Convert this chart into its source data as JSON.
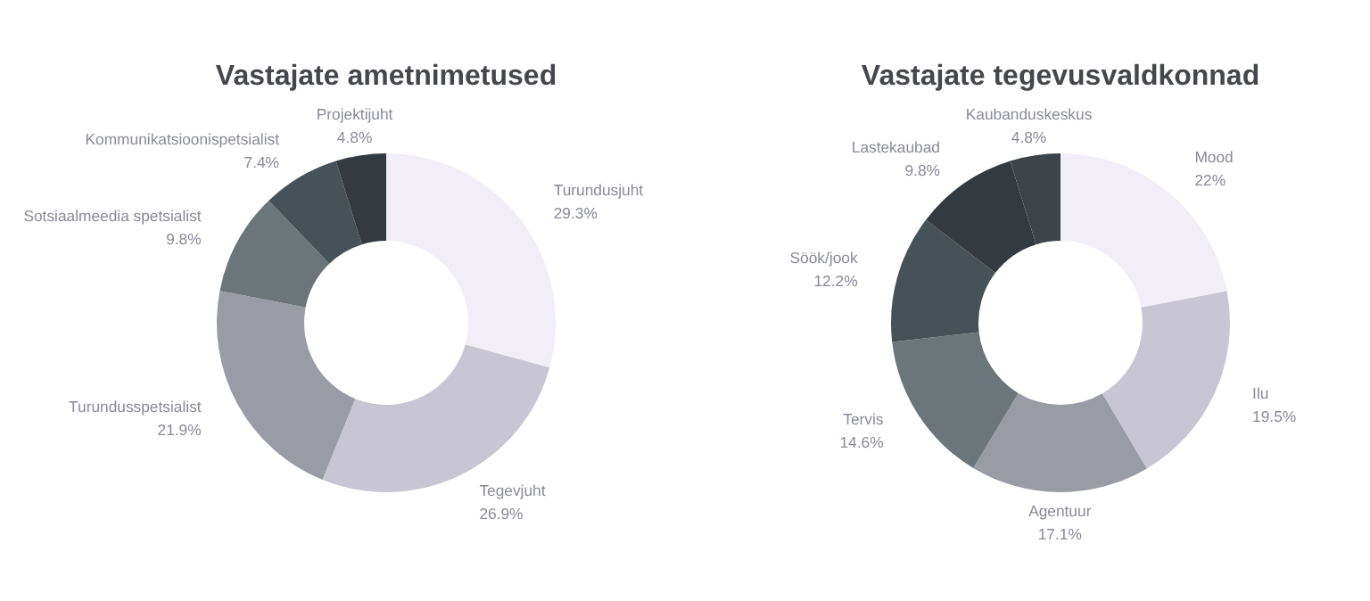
{
  "chart_data": [
    {
      "type": "donut",
      "title": "Vastajate ametnimetused",
      "categories": [
        "Turundusjuht",
        "Tegevjuht",
        "Turundusspetsialist",
        "Sotsiaalmeedia spetsialist",
        "Kommunikatsioonispetsialist",
        "Projektijuht"
      ],
      "values": [
        29.3,
        26.9,
        21.9,
        9.8,
        7.4,
        4.8
      ],
      "value_labels": [
        "29.3%",
        "26.9%",
        "21.9%",
        "9.8%",
        "7.4%",
        "4.8%"
      ],
      "colors": [
        "#f1eef8",
        "#c7c6d2",
        "#9a9ca5",
        "#6c7579",
        "#465257",
        "#343b40"
      ]
    },
    {
      "type": "donut",
      "title": "Vastajate tegevusvaldkonnad",
      "categories": [
        "Mood",
        "Ilu",
        "Agentuur",
        "Tervis",
        "Söök/jook",
        "Lastekaubad",
        "Kaubanduskeskus"
      ],
      "values": [
        22,
        19.5,
        17.1,
        14.6,
        12.2,
        9.8,
        4.8
      ],
      "value_labels": [
        "22%",
        "19.5%",
        "17.1%",
        "14.6%",
        "12.2%",
        "9.8%",
        "4.8%"
      ],
      "colors": [
        "#f1eef8",
        "#c7c6d2",
        "#9a9ca5",
        "#6c7579",
        "#465257",
        "#343b40",
        "#3c4449"
      ]
    }
  ]
}
